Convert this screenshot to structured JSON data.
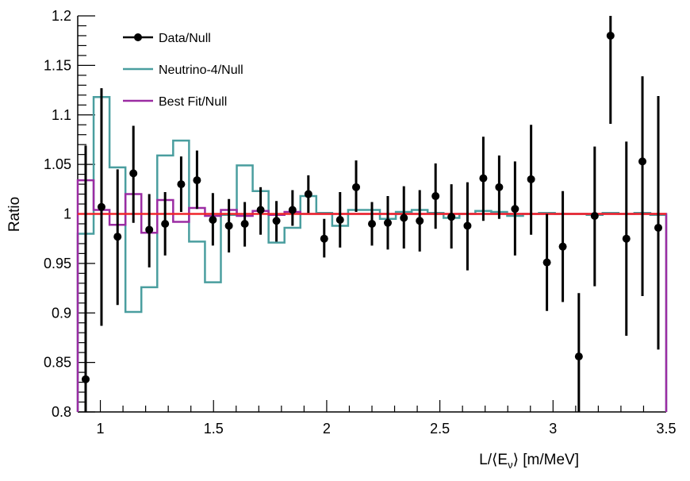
{
  "chart_data": {
    "type": "line",
    "xlabel": "L/⟨Eν⟩ [m/MeV]",
    "xlabel_main": "L/⟨E",
    "xlabel_sub": "ν",
    "xlabel_tail": "⟩ [m/MeV]",
    "ylabel": "Ratio",
    "xlim": [
      0.9,
      3.5
    ],
    "ylim": [
      0.8,
      1.2
    ],
    "grid": false,
    "legend_position": "top-left",
    "x_ticks": [
      "1",
      "1.5",
      "2",
      "2.5",
      "3",
      "3.5"
    ],
    "x_tick_values": [
      1,
      1.5,
      2,
      2.5,
      3,
      3.5
    ],
    "y_ticks": [
      "0.8",
      "0.85",
      "0.9",
      "0.95",
      "1",
      "1.05",
      "1.1",
      "1.15",
      "1.2"
    ],
    "y_tick_values": [
      0.8,
      0.85,
      0.9,
      0.95,
      1.0,
      1.05,
      1.1,
      1.15,
      1.2
    ],
    "bin_edges_range": [
      0.9,
      3.5
    ],
    "n_bins": 37,
    "x": [
      0.935,
      1.005,
      1.076,
      1.146,
      1.216,
      1.286,
      1.357,
      1.427,
      1.497,
      1.568,
      1.638,
      1.708,
      1.778,
      1.849,
      1.919,
      1.989,
      2.059,
      2.13,
      2.2,
      2.27,
      2.341,
      2.411,
      2.481,
      2.551,
      2.622,
      2.692,
      2.762,
      2.832,
      2.903,
      2.973,
      3.043,
      3.114,
      3.184,
      3.254,
      3.324,
      3.395,
      3.465
    ],
    "series": [
      {
        "name": "Data/Null",
        "kind": "points-with-errors",
        "color": "#000000",
        "values": [
          0.833,
          1.007,
          0.977,
          1.041,
          0.984,
          0.99,
          1.03,
          1.034,
          0.994,
          0.988,
          0.99,
          1.004,
          0.993,
          1.004,
          1.02,
          0.975,
          0.994,
          1.027,
          0.99,
          0.991,
          0.996,
          0.993,
          1.018,
          0.997,
          0.988,
          1.036,
          1.027,
          1.005,
          1.035,
          0.951,
          0.967,
          0.856,
          0.998,
          1.18,
          0.975,
          1.053,
          0.986
        ],
        "err_lower": [
          0.73,
          0.887,
          0.908,
          0.991,
          0.946,
          0.958,
          1.002,
          1.005,
          0.968,
          0.961,
          0.967,
          0.979,
          0.972,
          0.988,
          1.001,
          0.956,
          0.966,
          1.002,
          0.968,
          0.964,
          0.965,
          0.962,
          0.985,
          0.965,
          0.943,
          0.993,
          0.995,
          0.958,
          0.979,
          0.902,
          0.911,
          0.78,
          0.927,
          1.091,
          0.877,
          0.917,
          0.863
        ],
        "err_upper": [
          1.069,
          1.127,
          1.045,
          1.089,
          1.02,
          1.022,
          1.058,
          1.064,
          1.021,
          1.015,
          1.012,
          1.027,
          1.013,
          1.024,
          1.039,
          0.995,
          1.022,
          1.054,
          1.012,
          1.018,
          1.028,
          1.024,
          1.051,
          1.03,
          1.032,
          1.078,
          1.059,
          1.053,
          1.09,
          1.0,
          1.023,
          0.92,
          1.068,
          1.27,
          1.073,
          1.139,
          1.119
        ]
      },
      {
        "name": "Neutrino-4/Null",
        "kind": "histogram",
        "color": "#4a9e9f",
        "values": [
          0.98,
          1.118,
          1.047,
          0.901,
          0.926,
          1.059,
          1.074,
          0.972,
          0.931,
          0.999,
          1.049,
          1.023,
          0.971,
          0.986,
          1.018,
          1.001,
          0.988,
          1.004,
          1.004,
          0.995,
          1.002,
          1.004,
          1.001,
          0.996,
          1.0,
          1.003,
          1.002,
          0.998,
          1.0,
          1.001,
          1.0,
          1.0,
          0.999,
          1.001,
          1.0,
          1.001,
          0.999
        ]
      },
      {
        "name": "Best Fit/Null",
        "kind": "histogram",
        "color": "#9b2ca3",
        "values": [
          1.034,
          1.004,
          0.989,
          1.02,
          0.981,
          1.014,
          0.992,
          1.006,
          0.998,
          1.004,
          0.998,
          1.003,
          0.999,
          1.002,
          1.0,
          1.0,
          1.0,
          1.0,
          1.0,
          1.0,
          1.0,
          1.0,
          1.0,
          1.0,
          1.0,
          1.0,
          1.0,
          1.0,
          1.0,
          1.0,
          1.0,
          1.0,
          1.0,
          1.0,
          1.0,
          1.0,
          1.0
        ]
      },
      {
        "kind": "reference-line",
        "color": "#f0262a",
        "value": 1.0
      }
    ]
  }
}
